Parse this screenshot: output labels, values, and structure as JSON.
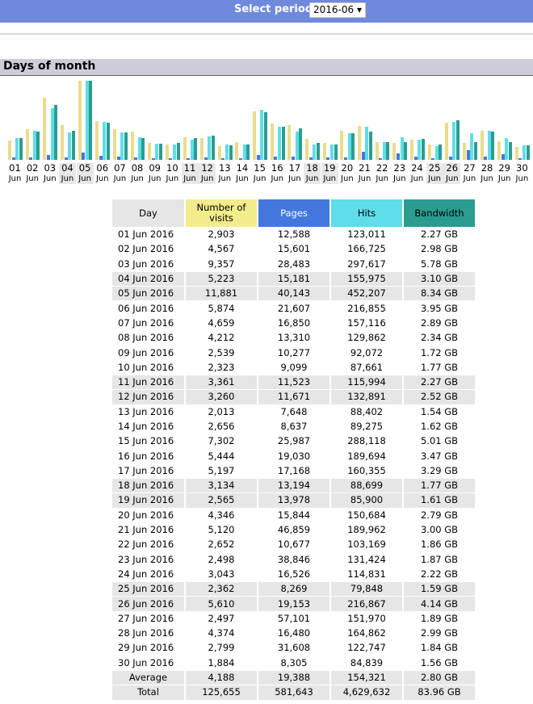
{
  "header": {
    "select_label": "Select period",
    "period_value": "2016-06 ▾"
  },
  "section": {
    "title": "Days of month"
  },
  "colors": {
    "visits": "#e9dc8e",
    "pages": "#4477dd",
    "hits": "#5fdde8",
    "bandwidth": "#2a9d8f",
    "header_bg": "#6f89dc"
  },
  "table": {
    "headers": [
      "Day",
      "Number of visits",
      "Pages",
      "Hits",
      "Bandwidth"
    ],
    "rows": [
      [
        "01 Jun 2016",
        "2,903",
        "12,588",
        "123,011",
        "2.27 GB"
      ],
      [
        "02 Jun 2016",
        "4,567",
        "15,601",
        "166,725",
        "2.98 GB"
      ],
      [
        "03 Jun 2016",
        "9,357",
        "28,483",
        "297,617",
        "5.78 GB"
      ],
      [
        "04 Jun 2016",
        "5,223",
        "15,181",
        "155,975",
        "3.10 GB"
      ],
      [
        "05 Jun 2016",
        "11,881",
        "40,143",
        "452,207",
        "8.34 GB"
      ],
      [
        "06 Jun 2016",
        "5,874",
        "21,607",
        "216,855",
        "3.95 GB"
      ],
      [
        "07 Jun 2016",
        "4,659",
        "16,850",
        "157,116",
        "2.89 GB"
      ],
      [
        "08 Jun 2016",
        "4,212",
        "13,310",
        "129,862",
        "2.34 GB"
      ],
      [
        "09 Jun 2016",
        "2,539",
        "10,277",
        "92,072",
        "1.72 GB"
      ],
      [
        "10 Jun 2016",
        "2,323",
        "9,099",
        "87,661",
        "1.77 GB"
      ],
      [
        "11 Jun 2016",
        "3,361",
        "11,523",
        "115,994",
        "2.27 GB"
      ],
      [
        "12 Jun 2016",
        "3,260",
        "11,671",
        "132,891",
        "2.52 GB"
      ],
      [
        "13 Jun 2016",
        "2,013",
        "7,648",
        "88,402",
        "1.54 GB"
      ],
      [
        "14 Jun 2016",
        "2,656",
        "8,637",
        "89,275",
        "1.62 GB"
      ],
      [
        "15 Jun 2016",
        "7,302",
        "25,987",
        "288,118",
        "5.01 GB"
      ],
      [
        "16 Jun 2016",
        "5,444",
        "19,030",
        "189,694",
        "3.47 GB"
      ],
      [
        "17 Jun 2016",
        "5,197",
        "17,168",
        "160,355",
        "3.29 GB"
      ],
      [
        "18 Jun 2016",
        "3,134",
        "13,194",
        "88,699",
        "1.77 GB"
      ],
      [
        "19 Jun 2016",
        "2,565",
        "13,978",
        "85,900",
        "1.61 GB"
      ],
      [
        "20 Jun 2016",
        "4,346",
        "15,844",
        "150,684",
        "2.79 GB"
      ],
      [
        "21 Jun 2016",
        "5,120",
        "46,859",
        "189,962",
        "3.00 GB"
      ],
      [
        "22 Jun 2016",
        "2,652",
        "10,677",
        "103,169",
        "1.86 GB"
      ],
      [
        "23 Jun 2016",
        "2,498",
        "38,846",
        "131,424",
        "1.87 GB"
      ],
      [
        "24 Jun 2016",
        "3,043",
        "16,526",
        "114,831",
        "2.22 GB"
      ],
      [
        "25 Jun 2016",
        "2,362",
        "8,269",
        "79,848",
        "1.59 GB"
      ],
      [
        "26 Jun 2016",
        "5,610",
        "19,153",
        "216,867",
        "4.14 GB"
      ],
      [
        "27 Jun 2016",
        "2,497",
        "57,101",
        "151,970",
        "1.89 GB"
      ],
      [
        "28 Jun 2016",
        "4,374",
        "16,480",
        "164,862",
        "2.99 GB"
      ],
      [
        "29 Jun 2016",
        "2,799",
        "31,608",
        "122,747",
        "1.84 GB"
      ],
      [
        "30 Jun 2016",
        "1,884",
        "8,305",
        "84,839",
        "1.56 GB"
      ]
    ],
    "weekend_days": [
      "04",
      "05",
      "11",
      "12",
      "18",
      "19",
      "25",
      "26"
    ],
    "average": [
      "Average",
      "4,188",
      "19,388",
      "154,321",
      "2.80 GB"
    ],
    "total": [
      "Total",
      "125,655",
      "581,643",
      "4,629,632",
      "83.96 GB"
    ]
  },
  "chart_data": {
    "type": "bar",
    "categories": [
      "01",
      "02",
      "03",
      "04",
      "05",
      "06",
      "07",
      "08",
      "09",
      "10",
      "11",
      "12",
      "13",
      "14",
      "15",
      "16",
      "17",
      "18",
      "19",
      "20",
      "21",
      "22",
      "23",
      "24",
      "25",
      "26",
      "27",
      "28",
      "29",
      "30"
    ],
    "category_sublabel": "Jun",
    "series": [
      {
        "name": "Number of visits",
        "values": [
          2903,
          4567,
          9357,
          5223,
          11881,
          5874,
          4659,
          4212,
          2539,
          2323,
          3361,
          3260,
          2013,
          2656,
          7302,
          5444,
          5197,
          3134,
          2565,
          4346,
          5120,
          2652,
          2498,
          3043,
          2362,
          5610,
          2497,
          4374,
          2799,
          1884
        ]
      },
      {
        "name": "Pages",
        "values": [
          12588,
          15601,
          28483,
          15181,
          40143,
          21607,
          16850,
          13310,
          10277,
          9099,
          11523,
          11671,
          7648,
          8637,
          25987,
          19030,
          17168,
          13194,
          13978,
          15844,
          46859,
          10677,
          38846,
          16526,
          8269,
          19153,
          57101,
          16480,
          31608,
          8305
        ]
      },
      {
        "name": "Hits",
        "values": [
          123011,
          166725,
          297617,
          155975,
          452207,
          216855,
          157116,
          129862,
          92072,
          87661,
          115994,
          132891,
          88402,
          89275,
          288118,
          189694,
          160355,
          88699,
          85900,
          150684,
          189962,
          103169,
          131424,
          114831,
          79848,
          216867,
          151970,
          164862,
          122747,
          84839
        ]
      },
      {
        "name": "Bandwidth",
        "unit": "GB",
        "values": [
          2.27,
          2.98,
          5.78,
          3.1,
          8.34,
          3.95,
          2.89,
          2.34,
          1.72,
          1.77,
          2.27,
          2.52,
          1.54,
          1.62,
          5.01,
          3.47,
          3.29,
          1.77,
          1.61,
          2.79,
          3.0,
          1.86,
          1.87,
          2.22,
          1.59,
          4.14,
          1.89,
          2.99,
          1.84,
          1.56
        ]
      }
    ]
  }
}
